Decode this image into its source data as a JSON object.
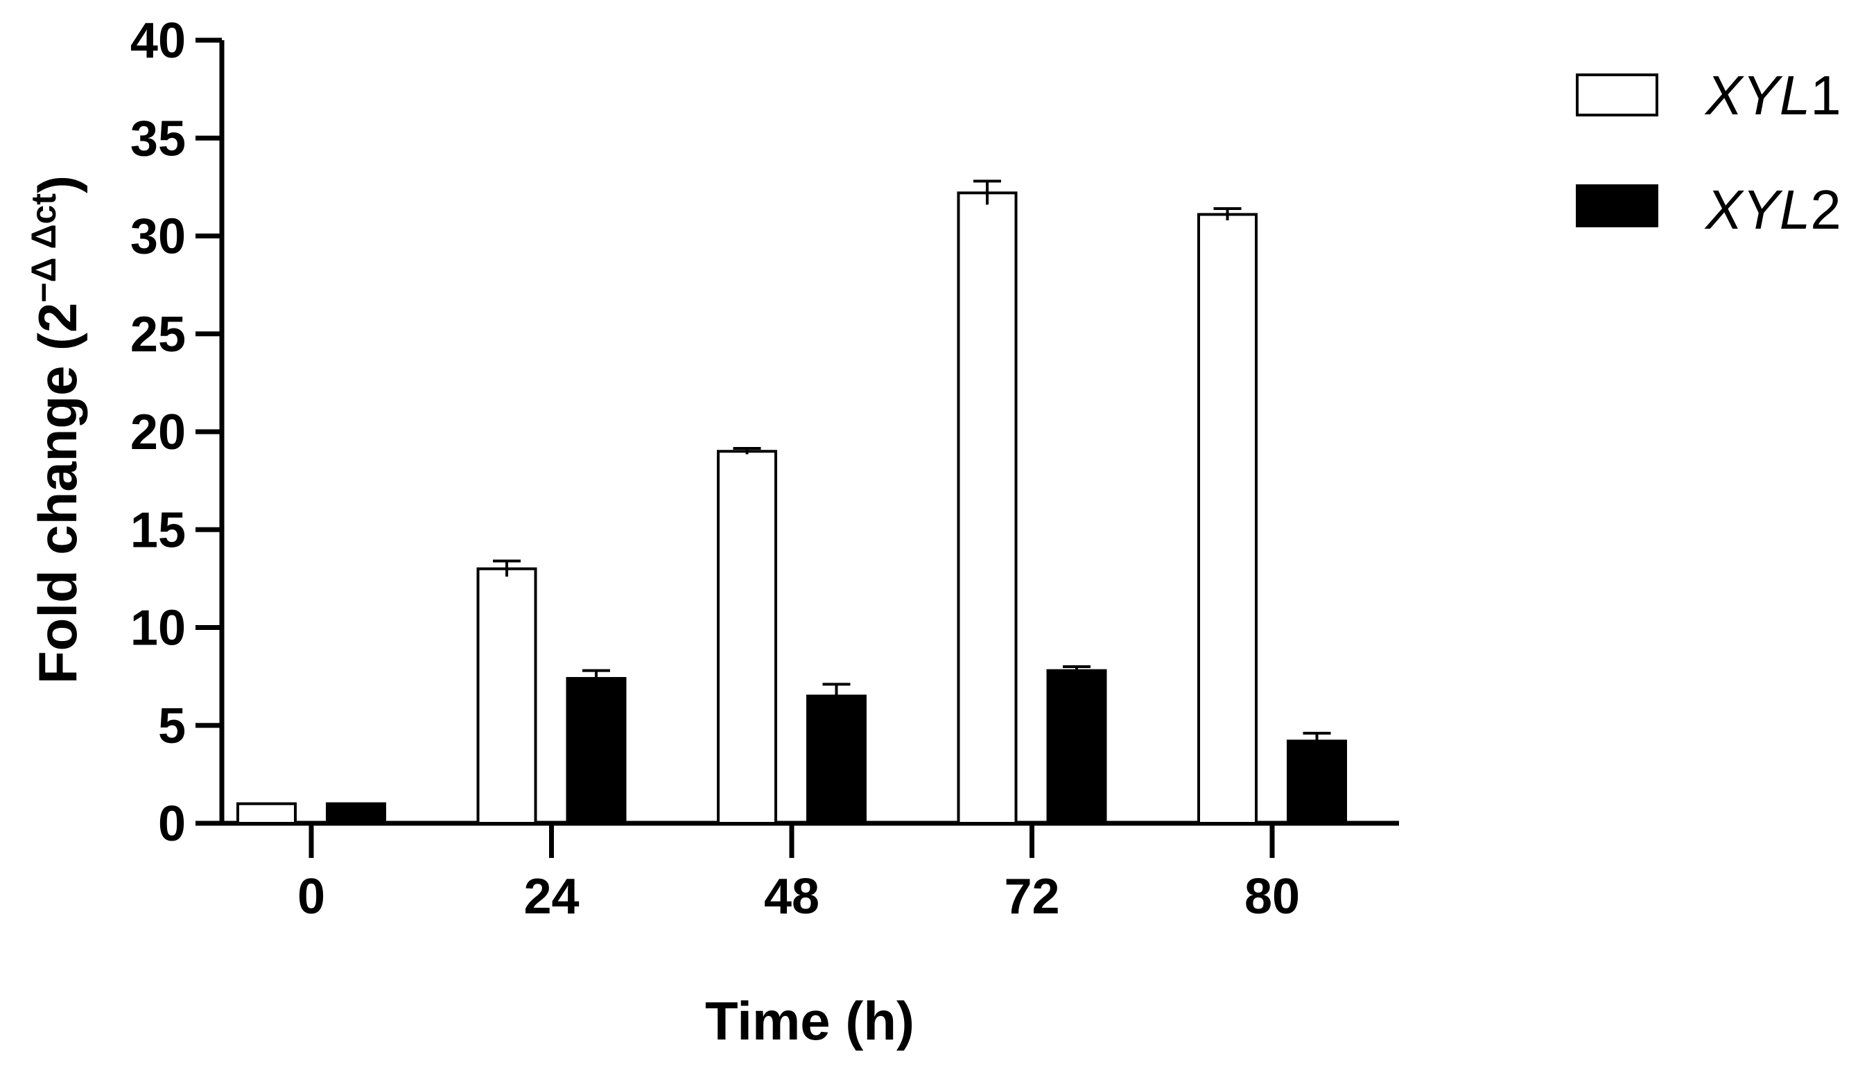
{
  "chart_data": {
    "type": "bar",
    "categories": [
      "0",
      "24",
      "48",
      "72",
      "80"
    ],
    "series": [
      {
        "name": "XYL1",
        "name_italic": "XYL",
        "name_suffix": "1",
        "fill": "#ffffff",
        "values": [
          1.0,
          13.0,
          19.0,
          32.2,
          31.1
        ],
        "errors": [
          0.0,
          0.4,
          0.15,
          0.6,
          0.3
        ]
      },
      {
        "name": "XYL2",
        "name_italic": "XYL",
        "name_suffix": "2",
        "fill": "#000000",
        "values": [
          1.0,
          7.4,
          6.5,
          7.8,
          4.2
        ],
        "errors": [
          0.0,
          0.4,
          0.6,
          0.2,
          0.4
        ]
      }
    ],
    "y_ticks": [
      0,
      5,
      10,
      15,
      20,
      25,
      30,
      35,
      40
    ],
    "ylim": [
      0,
      40
    ],
    "xlabel": "Time (h)",
    "ylabel_main": "Fold change (2",
    "ylabel_sup": "−Δ Δct",
    "ylabel_close": ")",
    "legend_position": "top-right",
    "grid": false,
    "colors": {
      "axis": "#000000",
      "bar_stroke": "#000000"
    }
  }
}
